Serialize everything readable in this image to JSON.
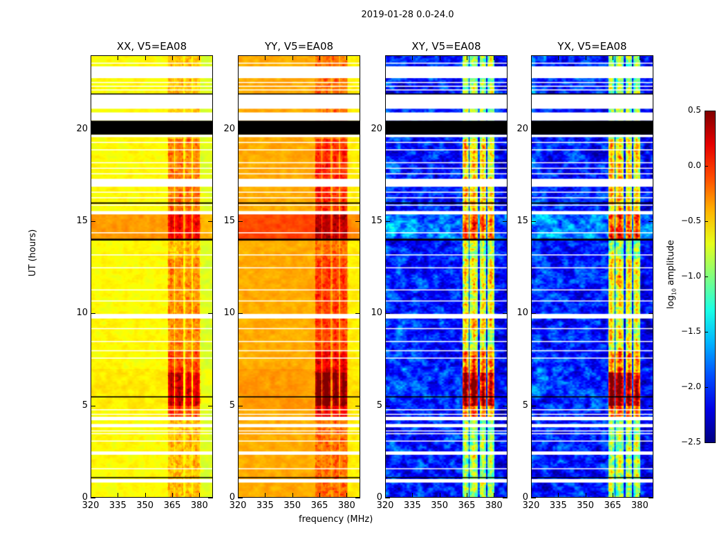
{
  "chart_data": {
    "type": "heatmap",
    "title": "2019-01-28 0.0-24.0",
    "xlabel": "frequency (MHz)",
    "ylabel": "UT (hours)",
    "xlim": [
      320,
      387.5
    ],
    "ylim": [
      0,
      24
    ],
    "x_ticks": [
      "320",
      "335",
      "350",
      "365",
      "380"
    ],
    "x_tick_values": [
      320,
      335,
      350,
      365,
      380
    ],
    "y_ticks": [
      "0",
      "5",
      "10",
      "15",
      "20"
    ],
    "y_tick_values": [
      0,
      5,
      10,
      15,
      20
    ],
    "colorbar": {
      "label_prefix": "log",
      "label_sub": "10",
      "label_suffix": " amplitude",
      "range": [
        -2.5,
        0.5
      ],
      "ticks": [
        "0.5",
        "0.0",
        "−0.5",
        "−1.0",
        "−1.5",
        "−2.0",
        "−2.5"
      ],
      "tick_values": [
        0.5,
        0.0,
        -0.5,
        -1.0,
        -1.5,
        -2.0,
        -2.5
      ],
      "colormap": "jet"
    },
    "panels": [
      {
        "title": "XX, V5=EA08",
        "base": -0.62,
        "band_boost": 0.35,
        "edge_drop": -0.15
      },
      {
        "title": "YY, V5=EA08",
        "base": -0.38,
        "band_boost": 0.35,
        "edge_drop": -0.25
      },
      {
        "title": "XY, V5=EA08",
        "base": -2.05,
        "band_boost": 1.3,
        "edge_drop": -0.1
      },
      {
        "title": "YX, V5=EA08",
        "base": -2.05,
        "band_boost": 1.3,
        "edge_drop": -0.1
      }
    ],
    "subbands_mhz": [
      [
        362.5,
        366
      ],
      [
        366.5,
        371
      ],
      [
        372,
        375.6
      ],
      [
        376.4,
        380
      ]
    ],
    "rfi_hour_profile": [
      [
        4.4,
        5.0,
        0.6
      ],
      [
        5.0,
        6.8,
        1.1
      ],
      [
        6.8,
        8.0,
        0.6
      ],
      [
        8.0,
        13.0,
        0.25
      ],
      [
        14.0,
        15.5,
        0.45
      ],
      [
        15.5,
        19.5,
        0.35
      ]
    ],
    "broadband_boost_hours": [
      [
        14.0,
        15.4,
        0.3
      ],
      [
        4.8,
        7.0,
        0.05
      ]
    ],
    "flagged_hours": [
      [
        22.76,
        23.4
      ],
      [
        21.1,
        21.9
      ],
      [
        20.45,
        20.9
      ],
      [
        19.56,
        19.7
      ],
      [
        16.87,
        17.3
      ],
      [
        15.37,
        15.55
      ],
      [
        9.72,
        9.97
      ],
      [
        4.2,
        4.39
      ],
      [
        3.82,
        4.0
      ],
      [
        2.33,
        2.51
      ],
      [
        0.82,
        1.01
      ]
    ],
    "flagged_lines_hours": [
      23.6,
      22.55,
      22.35,
      22.15,
      19.3,
      18.9,
      18.2,
      17.9,
      17.6,
      16.6,
      16.3,
      15.9,
      14.4,
      13.2,
      12.5,
      11.3,
      10.7,
      9.2,
      8.5,
      8.0,
      7.6,
      4.8,
      4.55,
      3.65,
      3.5,
      3.1,
      1.6
    ],
    "black_hours": [
      [
        19.7,
        20.45
      ],
      [
        15.95,
        16.02
      ],
      [
        13.95,
        14.05
      ],
      [
        5.44,
        5.5
      ],
      [
        1.07,
        1.12
      ],
      [
        21.88,
        21.93
      ]
    ]
  }
}
